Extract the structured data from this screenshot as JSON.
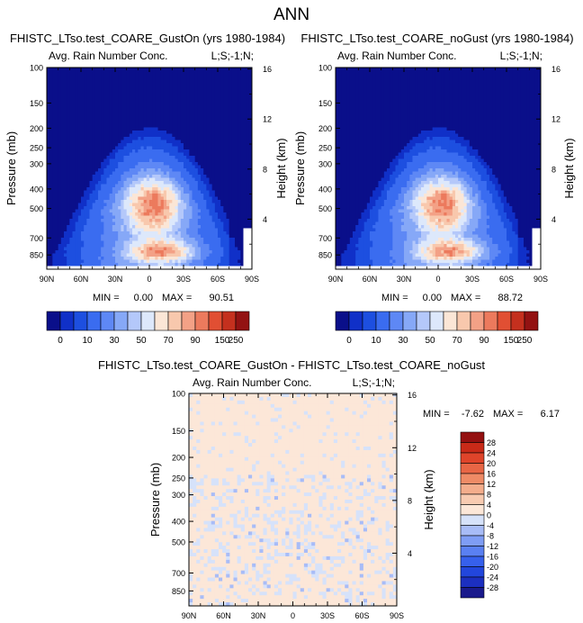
{
  "figure": {
    "title": "ANN"
  },
  "colors": {
    "top_scale": [
      "#0a0f8a",
      "#1030c8",
      "#1d4fe0",
      "#3a6cf0",
      "#5e88f5",
      "#86a8f7",
      "#b4c8fa",
      "#dde8fb",
      "#fbe6d6",
      "#f8c8ad",
      "#f3a186",
      "#ec7a5d",
      "#e14f33",
      "#c4301e",
      "#931212"
    ],
    "diff_scale": [
      "#1a1a8c",
      "#1c2fc0",
      "#2246dc",
      "#3660ec",
      "#5a80f2",
      "#7f9df5",
      "#a8bcf7",
      "#d6e2fa",
      "#fce7d8",
      "#f8cbb1",
      "#f4ad8c",
      "#ef8b66",
      "#e86645",
      "#df442a",
      "#c92a18",
      "#941010"
    ]
  },
  "chart_data": [
    {
      "type": "heatmap",
      "title": "FHISTC_LTso.test_COARE_GustOn (yrs 1980-1984)",
      "subtitle_left": "Avg. Rain Number Conc.",
      "subtitle_right": "L;S;-1;N;",
      "xlabel": "",
      "ylabel": "Pressure (mb)",
      "y2label": "Height (km)",
      "x_ticks": [
        "90N",
        "60N",
        "30N",
        "0",
        "30S",
        "60S",
        "90S"
      ],
      "y_ticks": [
        100,
        150,
        200,
        250,
        300,
        400,
        500,
        700,
        850
      ],
      "y2_ticks": [
        16,
        12,
        8,
        4
      ],
      "ylim": [
        100,
        1000
      ],
      "stats": {
        "min_label": "MIN =",
        "min": "0.00",
        "max_label": "MAX =",
        "max": "90.51"
      },
      "colorbar_labels": [
        "0",
        "10",
        "30",
        "50",
        "70",
        "90",
        "150",
        "250"
      ],
      "field": {
        "min": 0,
        "max": 90.51,
        "peak_lat": -5,
        "peak_pressure": 480
      }
    },
    {
      "type": "heatmap",
      "title": "FHISTC_LTso.test_COARE_noGust (yrs 1980-1984)",
      "subtitle_left": "Avg. Rain Number Conc.",
      "subtitle_right": "L;S;-1;N;",
      "xlabel": "",
      "ylabel": "Pressure (mb)",
      "y2label": "Height (km)",
      "x_ticks": [
        "90N",
        "60N",
        "30N",
        "0",
        "30S",
        "60S",
        "90S"
      ],
      "y_ticks": [
        100,
        150,
        200,
        250,
        300,
        400,
        500,
        700,
        850
      ],
      "y2_ticks": [
        16,
        12,
        8,
        4
      ],
      "ylim": [
        100,
        1000
      ],
      "stats": {
        "min_label": "MIN =",
        "min": "0.00",
        "max_label": "MAX =",
        "max": "88.72"
      },
      "colorbar_labels": [
        "0",
        "10",
        "30",
        "50",
        "70",
        "90",
        "150",
        "250"
      ],
      "field": {
        "min": 0,
        "max": 88.72,
        "peak_lat": -5,
        "peak_pressure": 480
      }
    },
    {
      "type": "heatmap",
      "title": "FHISTC_LTso.test_COARE_GustOn - FHISTC_LTso.test_COARE_noGust",
      "subtitle_left": "Avg. Rain Number Conc.",
      "subtitle_right": "L;S;-1;N;",
      "xlabel": "",
      "ylabel": "Pressure (mb)",
      "y2label": "Height (km)",
      "x_ticks": [
        "90N",
        "60N",
        "30N",
        "0",
        "30S",
        "60S",
        "90S"
      ],
      "y_ticks": [
        100,
        150,
        200,
        250,
        300,
        400,
        500,
        700,
        850
      ],
      "y2_ticks": [
        16,
        12,
        8,
        4
      ],
      "ylim": [
        100,
        1000
      ],
      "stats": {
        "min_label": "MIN =",
        "min": "-7.62",
        "max_label": "MAX =",
        "max": "6.17"
      },
      "colorbar_labels": [
        "28",
        "24",
        "20",
        "16",
        "12",
        "8",
        "4",
        "0",
        "-4",
        "-8",
        "-12",
        "-16",
        "-20",
        "-24",
        "-28"
      ],
      "field": {
        "min": -7.62,
        "max": 6.17
      }
    }
  ]
}
